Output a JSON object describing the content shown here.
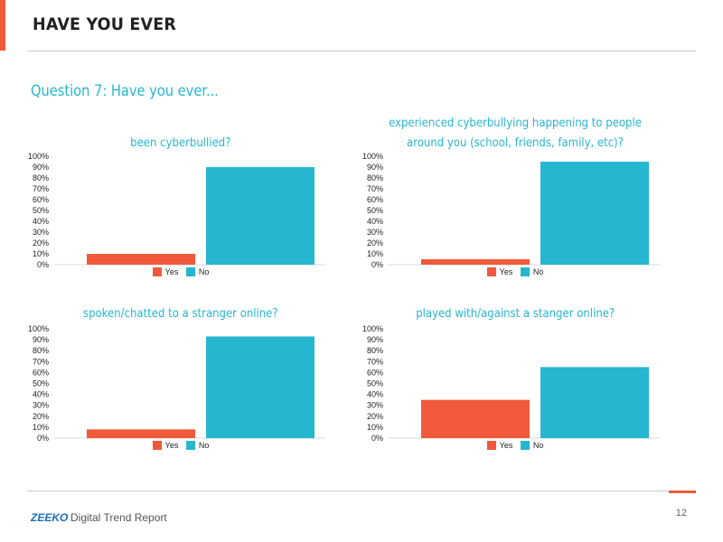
{
  "page": {
    "title": "HAVE YOU EVER",
    "question": "Question 7: Have you ever...",
    "page_number": "12"
  },
  "footer": {
    "brand": "ZEEKO",
    "report": "Digital Trend Report"
  },
  "colors": {
    "accent": "#f05a3b",
    "yes": "#f05a3b",
    "no": "#27b6cf",
    "heading": "#27b6cf",
    "brand": "#1d6fb5"
  },
  "chart_data": [
    {
      "type": "bar",
      "title": "been cyberbullied?",
      "categories": [
        "Yes",
        "No"
      ],
      "values": [
        10,
        90
      ],
      "unit": "%",
      "ylim": [
        0,
        100
      ],
      "yticks": [
        "0%",
        "10%",
        "20%",
        "30%",
        "40%",
        "50%",
        "60%",
        "70%",
        "80%",
        "90%",
        "100%"
      ],
      "legend": [
        "Yes",
        "No"
      ],
      "legend_position": "bottom",
      "grid": false
    },
    {
      "type": "bar",
      "title": "experienced cyberbullying happening to people around you (school, friends, family, etc)?",
      "categories": [
        "Yes",
        "No"
      ],
      "values": [
        5,
        95
      ],
      "unit": "%",
      "ylim": [
        0,
        100
      ],
      "yticks": [
        "0%",
        "10%",
        "20%",
        "30%",
        "40%",
        "50%",
        "60%",
        "70%",
        "80%",
        "90%",
        "100%"
      ],
      "legend": [
        "Yes",
        "No"
      ],
      "legend_position": "bottom",
      "grid": false
    },
    {
      "type": "bar",
      "title": "spoken/chatted to a stranger online?",
      "categories": [
        "Yes",
        "No"
      ],
      "values": [
        8,
        93
      ],
      "unit": "%",
      "ylim": [
        0,
        100
      ],
      "yticks": [
        "0%",
        "10%",
        "20%",
        "30%",
        "40%",
        "50%",
        "60%",
        "70%",
        "80%",
        "90%",
        "100%"
      ],
      "legend": [
        "Yes",
        "No"
      ],
      "legend_position": "bottom",
      "grid": false
    },
    {
      "type": "bar",
      "title": "played with/against a stanger online?",
      "categories": [
        "Yes",
        "No"
      ],
      "values": [
        35,
        65
      ],
      "unit": "%",
      "ylim": [
        0,
        100
      ],
      "yticks": [
        "0%",
        "10%",
        "20%",
        "30%",
        "40%",
        "50%",
        "60%",
        "70%",
        "80%",
        "90%",
        "100%"
      ],
      "legend": [
        "Yes",
        "No"
      ],
      "legend_position": "bottom",
      "grid": false
    }
  ]
}
